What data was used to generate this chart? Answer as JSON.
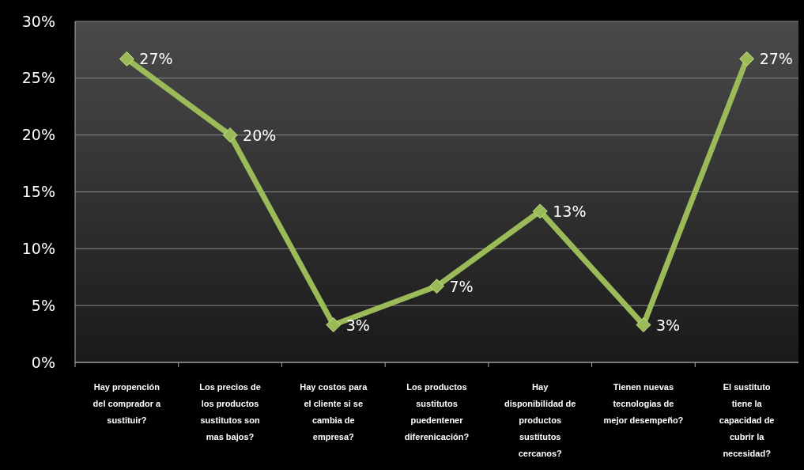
{
  "chart_data": {
    "type": "line",
    "categories": [
      "Hay propención del comprador a sustituir?",
      "Los precios de los productos sustitutos son mas bajos?",
      "Hay costos para el cliente si se cambia de empresa?",
      "Los productos sustitutos puedentener diferenicación?",
      "Hay disponibilidad de productos sustitutos cercanos?",
      "Tienen nuevas tecnologias de mejor desempeño?",
      "El sustituto tiene la capacidad de cubrir la necesidad?"
    ],
    "series": [
      {
        "color": "#9bbb59",
        "values": [
          26.7,
          20,
          3.3,
          6.7,
          13.3,
          3.3,
          26.7
        ],
        "value_labels": [
          "27%",
          "20%",
          "3%",
          "7%",
          "13%",
          "3%",
          "27%"
        ]
      }
    ],
    "ylim": [
      0,
      30
    ],
    "yticks": [
      {
        "value": 0,
        "label": "0%"
      },
      {
        "value": 5,
        "label": "5%"
      },
      {
        "value": 10,
        "label": "10%"
      },
      {
        "value": 15,
        "label": "15%"
      },
      {
        "value": 20,
        "label": "20%"
      },
      {
        "value": 25,
        "label": "25%"
      },
      {
        "value": 30,
        "label": "30%"
      }
    ],
    "grid": "y",
    "marker": "diamond",
    "line_style": "solid"
  }
}
